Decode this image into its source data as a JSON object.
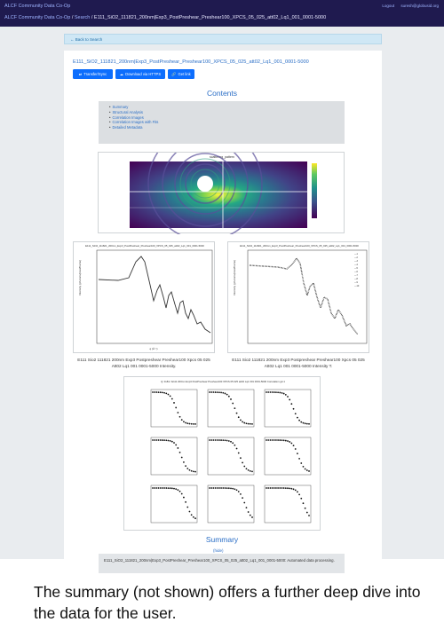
{
  "topbar": {
    "brand": "ALCF Community Data Co-Op",
    "crumb_home": "ALCF Community Data Co-Op",
    "crumb_search": "Search",
    "crumb_sep": "/",
    "crumb_current": "E111_SiO2_111821_200nm|Exp3_PostPreshear_Preshear100_XPCS_05_025_att02_Lq1_001_0001-5000",
    "logout": "Logout",
    "user": "suresh@globusid.org"
  },
  "back_link": "← Back to Search",
  "dataset_title": "E111_SiO2_111821_200nm|Exp3_PostPreshear_Preshear100_XPCS_05_025_att02_Lq1_001_0001-5000",
  "buttons": {
    "transfer": "Transfer/Sync",
    "download": "Download via HTTPS",
    "getlink": "Get link"
  },
  "contents_heading": "Contents",
  "toc": [
    "Summary",
    "Structural Analysis",
    "Correlation Images",
    "Correlation Images with Fits",
    "Detailed Metadata"
  ],
  "scatter_title": "scattering_pattern",
  "plot_left_title": "E111_SiO2_111821_200nm_Exp3_PostPreshear_Preshear100_XPCS_05_025_att02_Lq1_001_0001-5000",
  "plot_right_title": "E111_SiO2_111821_200nm_Exp3_PostPreshear_Preshear100_XPCS_05_025_att02_Lq1_001_0001-5000",
  "caption_left": "E111 Sio2 111821 200nm Exp3 Postpreshear Preshear100 Xpcs 05 025 Att02 Lq1 001 0001-5000 Intensity.",
  "caption_right": "E111 Sio2 111821 200nm Exp3 Postpreshear Preshear100 Xpcs 05 025 Att02 Lq1 001 0001-5000 Intensity T.",
  "corr_title": "Q: 0x84 / E111 200nm Exp3 PostPreshear Preshear100 XPCS 05 025 att02 Lq1 001 0001-5000 Correlation g2-1",
  "summary_heading": "Summary",
  "summary_toggle": "(hide)",
  "summary_text": "E111_SiO2_111821_200nm|Exp3_PostPreshear_Preshear100_XPCS_05_025_att02_Lq1_001_0001-5000: Automated data processing.",
  "footer_caption": "The summary (not shown) offers a further deep dive into the data for the user.",
  "colors": {
    "topbar": "#1f1a4f",
    "link": "#2a6ec6",
    "button": "#0d6efd"
  }
}
